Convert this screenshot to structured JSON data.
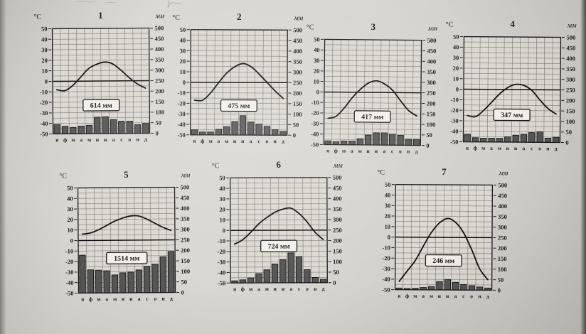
{
  "photo": {
    "paper_color": "#d7d5d0"
  },
  "months": [
    "я",
    "ф",
    "м",
    "а",
    "м",
    "и",
    "и",
    "а",
    "с",
    "о",
    "н",
    "д"
  ],
  "axis": {
    "temp_unit": "°C",
    "precip_unit": "мм",
    "temp_ticks": [
      50,
      40,
      30,
      20,
      10,
      0,
      -10,
      -20,
      -30,
      -40,
      -50
    ],
    "precip_ticks": [
      500,
      450,
      400,
      350,
      300,
      250,
      200,
      150,
      100,
      50,
      0
    ],
    "temp_range": [
      -50,
      50
    ],
    "precip_range": [
      0,
      500
    ],
    "grid": "on"
  },
  "chart_data": [
    {
      "type": "climograph",
      "title": "1",
      "annotation": "614 мм",
      "precipitation_total_mm": 614,
      "temperature_c": [
        -8,
        -9,
        -4,
        4,
        12,
        16,
        18,
        16,
        10,
        3,
        -3,
        -7
      ],
      "precipitation_mm": [
        44,
        36,
        30,
        36,
        40,
        78,
        80,
        66,
        58,
        58,
        41,
        47
      ]
    },
    {
      "type": "climograph",
      "title": "2",
      "annotation": "475 мм",
      "precipitation_total_mm": 475,
      "temperature_c": [
        -17,
        -17,
        -10,
        0,
        9,
        15,
        18,
        15,
        8,
        0,
        -8,
        -15
      ],
      "precipitation_mm": [
        24,
        14,
        14,
        27,
        40,
        64,
        92,
        62,
        52,
        42,
        26,
        18
      ]
    },
    {
      "type": "climograph",
      "title": "3",
      "annotation": "417 мм",
      "precipitation_total_mm": 417,
      "temperature_c": [
        -25,
        -23,
        -15,
        -5,
        3,
        9,
        11,
        8,
        2,
        -8,
        -17,
        -22
      ],
      "precipitation_mm": [
        18,
        14,
        18,
        18,
        29,
        47,
        58,
        58,
        52,
        47,
        29,
        29
      ]
    },
    {
      "type": "climograph",
      "title": "4",
      "annotation": "347 мм",
      "precipitation_total_mm": 347,
      "temperature_c": [
        -25,
        -26,
        -20,
        -12,
        -4,
        2,
        5,
        4,
        -1,
        -10,
        -18,
        -23
      ],
      "precipitation_mm": [
        36,
        20,
        18,
        18,
        18,
        25,
        33,
        38,
        46,
        50,
        20,
        25
      ]
    },
    {
      "type": "climograph",
      "title": "5",
      "annotation": "1514 мм",
      "precipitation_total_mm": 1514,
      "temperature_c": [
        6,
        7,
        10,
        14,
        18,
        21,
        23,
        23,
        20,
        16,
        12,
        9
      ],
      "precipitation_mm": [
        180,
        110,
        108,
        105,
        85,
        95,
        98,
        108,
        125,
        135,
        170,
        195
      ]
    },
    {
      "type": "climograph",
      "title": "6",
      "annotation": "724 мм",
      "precipitation_total_mm": 724,
      "temperature_c": [
        -13,
        -9,
        -2,
        6,
        12,
        17,
        20,
        21,
        16,
        8,
        -2,
        -9
      ],
      "precipitation_mm": [
        10,
        15,
        24,
        44,
        62,
        90,
        110,
        142,
        124,
        62,
        25,
        16
      ]
    },
    {
      "type": "climograph",
      "title": "7",
      "annotation": "246 мм",
      "precipitation_total_mm": 246,
      "temperature_c": [
        -42,
        -32,
        -22,
        -8,
        5,
        14,
        18,
        14,
        4,
        -12,
        -30,
        -40
      ],
      "precipitation_mm": [
        8,
        6,
        7,
        11,
        16,
        40,
        50,
        36,
        26,
        21,
        15,
        10
      ]
    }
  ]
}
